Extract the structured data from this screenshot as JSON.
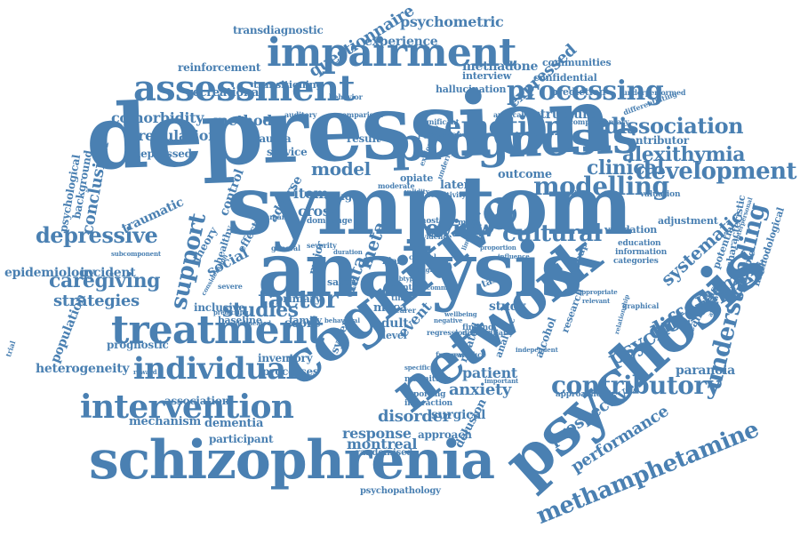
{
  "theme": {
    "word_color": "#4a80b2",
    "background": "#ffffff"
  },
  "cloud": {
    "words": [
      "depression",
      "symptom",
      "analysis",
      "cognitive",
      "network",
      "psychosis",
      "schizophrenia",
      "prognosis",
      "impairment",
      "assessment",
      "treatment",
      "intervention",
      "individual",
      "emotion",
      "processing",
      "modelling",
      "development",
      "contributory",
      "understanding",
      "methamphetamine",
      "dissociation",
      "alexithymia",
      "review",
      "cultural",
      "clinical",
      "support",
      "depressive",
      "factor",
      "studies",
      "caregiving",
      "strategies",
      "disorder",
      "response",
      "montreal",
      "anxiety",
      "patient",
      "psychotic",
      "difference",
      "memory",
      "systematic",
      "performance",
      "prospective",
      "paranoia",
      "expressed",
      "questionnaire",
      "psychometric",
      "experience",
      "methadone",
      "transdiagnostic",
      "reinforcement",
      "recreational",
      "transitioning",
      "hallucination",
      "interview",
      "communities",
      "confidential",
      "prediction",
      "structure",
      "comorbidity",
      "method",
      "regulation",
      "depressed",
      "conclusion",
      "background",
      "psychological",
      "traumatic",
      "epidemiology",
      "incident",
      "population",
      "heterogeneity",
      "mechanism",
      "dementia",
      "association",
      "participant",
      "prognostic",
      "inventory",
      "processes",
      "surgical",
      "approach",
      "delusion",
      "event",
      "adult",
      "score",
      "primary",
      "baseline",
      "family",
      "social",
      "model",
      "cross",
      "item",
      "data",
      "meta",
      "result",
      "trauma",
      "service",
      "latent",
      "outcome",
      "contributor",
      "drug",
      "opiate",
      "adverse",
      "control",
      "inclusive",
      "healthy",
      "theory",
      "effect",
      "system",
      "level",
      "moca",
      "safety",
      "major",
      "study",
      "related",
      "alcohol",
      "analytic",
      "research",
      "group",
      "cannabis",
      "variable",
      "potential",
      "characteristic",
      "methodological",
      "validation",
      "adjustment",
      "education",
      "information",
      "categories",
      "graphical",
      "approaches",
      "randomised",
      "psychopathology",
      "magnitude",
      "reporting",
      "interaction",
      "finding",
      "evidence",
      "severity",
      "domain",
      "range",
      "bias",
      "task",
      "month",
      "time",
      "most",
      "mild",
      "option",
      "valuation",
      "differentiating",
      "complementary",
      "underperformed",
      "applicability",
      "publication",
      "behavior",
      "comparison",
      "auditory",
      "significant",
      "underlying",
      "moderate",
      "exploratory",
      "sensitivity",
      "validity",
      "summary",
      "general",
      "severe",
      "framework",
      "variance",
      "differential",
      "regression",
      "central",
      "carer",
      "trial",
      "reward",
      "subcomponent",
      "consideration",
      "predicting",
      "delineated",
      "behavioral",
      "appropriate",
      "relevant",
      "avoidance",
      "relationship",
      "interpersonal",
      "independent",
      "important",
      "influence",
      "proportion",
      "limitation",
      "wellbeing",
      "commonly",
      "insight",
      "negative",
      "subtype",
      "specific",
      "duration",
      "context",
      "positive",
      "measure"
    ]
  }
}
